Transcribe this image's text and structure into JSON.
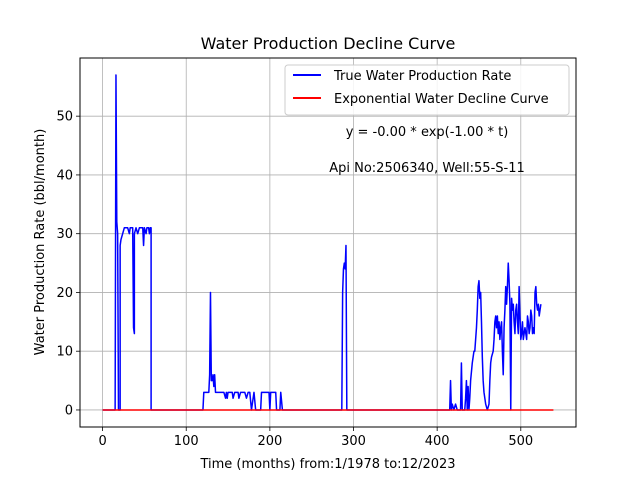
{
  "chart_data": {
    "type": "line",
    "title": "Water Production Decline Curve",
    "xlabel": "Time (months) from:1/1978 to:12/2023",
    "ylabel": "Water Production Rate (bbl/month)",
    "xlim": [
      -27,
      566
    ],
    "ylim": [
      -2.9,
      59.9
    ],
    "xticks": [
      0,
      100,
      200,
      300,
      400,
      500
    ],
    "yticks": [
      0,
      10,
      20,
      30,
      40,
      50
    ],
    "grid": true,
    "legend_position": "top-right",
    "annotations": [
      "y = -0.00 * exp(-1.00 * t)",
      "Api No:2506340, Well:55-S-11"
    ],
    "series": [
      {
        "name": "True Water Production Rate",
        "color": "#0000ff",
        "points": [
          [
            0,
            0
          ],
          [
            15,
            0
          ],
          [
            16,
            57
          ],
          [
            17,
            32
          ],
          [
            18,
            30
          ],
          [
            19,
            0
          ],
          [
            21,
            0
          ],
          [
            21,
            28
          ],
          [
            22,
            29
          ],
          [
            24,
            30
          ],
          [
            26,
            31
          ],
          [
            30,
            31
          ],
          [
            32,
            30
          ],
          [
            33,
            31
          ],
          [
            36,
            31
          ],
          [
            37,
            14
          ],
          [
            38,
            13
          ],
          [
            38,
            30
          ],
          [
            40,
            31
          ],
          [
            42,
            30
          ],
          [
            44,
            31
          ],
          [
            48,
            31
          ],
          [
            49,
            28
          ],
          [
            50,
            31
          ],
          [
            52,
            30
          ],
          [
            53,
            31
          ],
          [
            55,
            31
          ],
          [
            56,
            30
          ],
          [
            57,
            31
          ],
          [
            58,
            31
          ],
          [
            58,
            0
          ],
          [
            120,
            0
          ],
          [
            121,
            3
          ],
          [
            127,
            3
          ],
          [
            128,
            6
          ],
          [
            129,
            20
          ],
          [
            130,
            5
          ],
          [
            131,
            5
          ],
          [
            132,
            6
          ],
          [
            133,
            4
          ],
          [
            134,
            6
          ],
          [
            135,
            3
          ],
          [
            145,
            3
          ],
          [
            147,
            2
          ],
          [
            148,
            3
          ],
          [
            149,
            2
          ],
          [
            150,
            3
          ],
          [
            155,
            3
          ],
          [
            156,
            2
          ],
          [
            158,
            3
          ],
          [
            162,
            3
          ],
          [
            163,
            2
          ],
          [
            165,
            3
          ],
          [
            170,
            3
          ],
          [
            172,
            2
          ],
          [
            174,
            3
          ],
          [
            176,
            3
          ],
          [
            178,
            0
          ],
          [
            179,
            1
          ],
          [
            181,
            3
          ],
          [
            183,
            0
          ],
          [
            189,
            0
          ],
          [
            190,
            3
          ],
          [
            199,
            3
          ],
          [
            200,
            0
          ],
          [
            201,
            3
          ],
          [
            207,
            3
          ],
          [
            208,
            0
          ],
          [
            212,
            0
          ],
          [
            213,
            3
          ],
          [
            215,
            0
          ],
          [
            286,
            0
          ],
          [
            287,
            20
          ],
          [
            288,
            24
          ],
          [
            289,
            25
          ],
          [
            290,
            24
          ],
          [
            291,
            28
          ],
          [
            292,
            0
          ],
          [
            415,
            0
          ],
          [
            416,
            5
          ],
          [
            417,
            0
          ],
          [
            418,
            1
          ],
          [
            420,
            0
          ],
          [
            422,
            1
          ],
          [
            424,
            0
          ],
          [
            428,
            0
          ],
          [
            429,
            8
          ],
          [
            430,
            0
          ],
          [
            433,
            0
          ],
          [
            434,
            2
          ],
          [
            435,
            5
          ],
          [
            436,
            0
          ],
          [
            437,
            4
          ],
          [
            438,
            0
          ],
          [
            439,
            2
          ],
          [
            440,
            5
          ],
          [
            442,
            8
          ],
          [
            444,
            10
          ],
          [
            445,
            10
          ],
          [
            446,
            12
          ],
          [
            447,
            14
          ],
          [
            448,
            17
          ],
          [
            449,
            21
          ],
          [
            450,
            22
          ],
          [
            451,
            19
          ],
          [
            452,
            20
          ],
          [
            453,
            15
          ],
          [
            454,
            9
          ],
          [
            455,
            5
          ],
          [
            456,
            3
          ],
          [
            458,
            1
          ],
          [
            460,
            0
          ],
          [
            462,
            1
          ],
          [
            463,
            5
          ],
          [
            464,
            8
          ],
          [
            465,
            9
          ],
          [
            467,
            10
          ],
          [
            468,
            12
          ],
          [
            469,
            15
          ],
          [
            470,
            16
          ],
          [
            471,
            14
          ],
          [
            472,
            16
          ],
          [
            473,
            13
          ],
          [
            474,
            15
          ],
          [
            475,
            12
          ],
          [
            476,
            14
          ],
          [
            477,
            15
          ],
          [
            478,
            10
          ],
          [
            479,
            6
          ],
          [
            480,
            14
          ],
          [
            481,
            17
          ],
          [
            482,
            21
          ],
          [
            483,
            18
          ],
          [
            484,
            21
          ],
          [
            485,
            25
          ],
          [
            486,
            22
          ],
          [
            487,
            18
          ],
          [
            488,
            0
          ],
          [
            489,
            19
          ],
          [
            490,
            17
          ],
          [
            491,
            18
          ],
          [
            492,
            15
          ],
          [
            493,
            13
          ],
          [
            494,
            17
          ],
          [
            495,
            18
          ],
          [
            496,
            15
          ],
          [
            497,
            13
          ],
          [
            498,
            21
          ],
          [
            499,
            16
          ],
          [
            500,
            12
          ],
          [
            501,
            13
          ],
          [
            502,
            15
          ],
          [
            503,
            12
          ],
          [
            504,
            13
          ],
          [
            505,
            14
          ],
          [
            506,
            13
          ],
          [
            507,
            12
          ],
          [
            508,
            16
          ],
          [
            509,
            15
          ],
          [
            510,
            13
          ],
          [
            511,
            14
          ],
          [
            512,
            17
          ],
          [
            513,
            16
          ],
          [
            514,
            13
          ],
          [
            515,
            14
          ],
          [
            516,
            13
          ],
          [
            517,
            20
          ],
          [
            518,
            21
          ],
          [
            519,
            18
          ],
          [
            520,
            17
          ],
          [
            521,
            18
          ],
          [
            522,
            16
          ],
          [
            523,
            17
          ],
          [
            524,
            18
          ]
        ]
      },
      {
        "name": "Exponential Water Decline Curve",
        "color": "#ff0000",
        "points": [
          [
            0,
            0
          ],
          [
            539,
            0
          ]
        ]
      }
    ]
  }
}
